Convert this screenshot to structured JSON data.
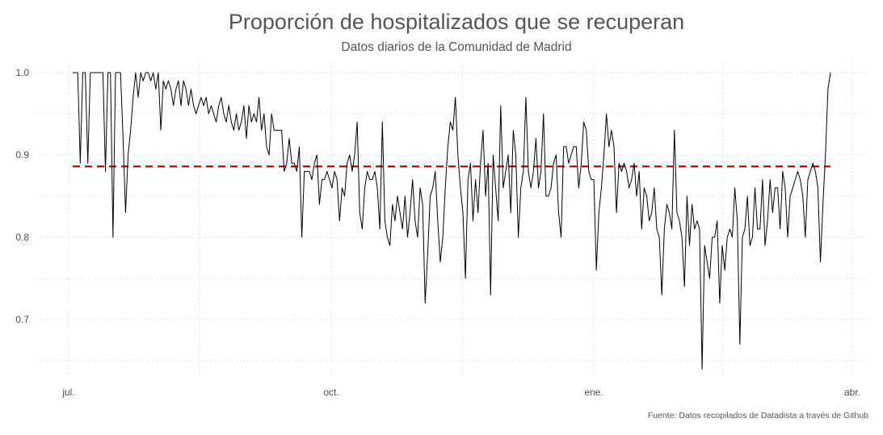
{
  "chart_data": {
    "type": "line",
    "title": "Proporción de hospitalizados que se recuperan",
    "subtitle": "Datos diarios de la Comunidad de Madrid",
    "caption": "Fuente: Datos recopilados de Datadista a través de Github",
    "xlabel": "",
    "ylabel": "",
    "x_tick_labels": [
      "jul.",
      "oct.",
      "ene.",
      "abr."
    ],
    "y_tick_labels": [
      "0.7",
      "0.8",
      "0.9",
      "1.0"
    ],
    "y_ticks": [
      0.7,
      0.8,
      0.9,
      1.0
    ],
    "ylim": [
      0.62,
      1.03
    ],
    "grid": true,
    "line_color": "#000000",
    "reference_line": {
      "value": 0.886,
      "color": "#cc0000",
      "style": "dashed"
    },
    "series": [
      {
        "values": [
          1.0,
          1.0,
          1.0,
          0.89,
          1.0,
          1.0,
          0.89,
          1.0,
          1.0,
          1.0,
          1.0,
          1.0,
          1.0,
          0.88,
          1.0,
          1.0,
          0.8,
          1.0,
          1.0,
          1.0,
          0.92,
          0.83,
          0.9,
          0.93,
          0.97,
          1.0,
          0.97,
          1.0,
          0.99,
          1.0,
          1.0,
          0.99,
          1.0,
          0.98,
          1.0,
          0.93,
          0.99,
          0.98,
          0.99,
          0.98,
          0.96,
          0.98,
          0.99,
          0.96,
          0.99,
          0.98,
          0.96,
          0.98,
          0.96,
          0.95,
          0.96,
          0.97,
          0.96,
          0.97,
          0.95,
          0.96,
          0.95,
          0.94,
          0.96,
          0.97,
          0.95,
          0.94,
          0.96,
          0.94,
          0.93,
          0.95,
          0.93,
          0.94,
          0.96,
          0.92,
          0.96,
          0.94,
          0.95,
          0.94,
          0.97,
          0.93,
          0.95,
          0.91,
          0.9,
          0.95,
          0.93,
          0.93,
          0.93,
          0.93,
          0.88,
          0.89,
          0.92,
          0.89,
          0.89,
          0.88,
          0.91,
          0.8,
          0.88,
          0.88,
          0.88,
          0.87,
          0.89,
          0.9,
          0.84,
          0.87,
          0.87,
          0.88,
          0.87,
          0.86,
          0.88,
          0.87,
          0.82,
          0.86,
          0.85,
          0.89,
          0.9,
          0.88,
          0.9,
          0.94,
          0.83,
          0.81,
          0.86,
          0.88,
          0.87,
          0.87,
          0.88,
          0.86,
          0.81,
          0.94,
          0.82,
          0.8,
          0.79,
          0.84,
          0.82,
          0.85,
          0.83,
          0.81,
          0.85,
          0.8,
          0.83,
          0.87,
          0.82,
          0.8,
          0.86,
          0.84,
          0.72,
          0.78,
          0.85,
          0.86,
          0.88,
          0.82,
          0.77,
          0.8,
          0.86,
          0.91,
          0.94,
          0.93,
          0.97,
          0.9,
          0.86,
          0.83,
          0.75,
          0.87,
          0.89,
          0.82,
          0.87,
          0.83,
          0.89,
          0.93,
          0.85,
          0.89,
          0.73,
          0.9,
          0.86,
          0.82,
          0.96,
          0.86,
          0.88,
          0.9,
          0.83,
          0.93,
          0.9,
          0.8,
          0.86,
          0.88,
          0.97,
          0.88,
          0.86,
          0.88,
          0.92,
          0.86,
          0.88,
          0.95,
          0.85,
          0.85,
          0.86,
          0.89,
          0.9,
          0.83,
          0.8,
          0.91,
          0.91,
          0.89,
          0.9,
          0.91,
          0.91,
          0.86,
          0.89,
          0.94,
          0.93,
          0.88,
          0.87,
          0.87,
          0.76,
          0.83,
          0.86,
          0.9,
          0.95,
          0.91,
          0.93,
          0.91,
          0.83,
          0.89,
          0.88,
          0.89,
          0.88,
          0.86,
          0.87,
          0.89,
          0.85,
          0.88,
          0.81,
          0.86,
          0.85,
          0.82,
          0.83,
          0.86,
          0.81,
          0.8,
          0.73,
          0.81,
          0.84,
          0.83,
          0.81,
          0.93,
          0.83,
          0.82,
          0.8,
          0.74,
          0.85,
          0.79,
          0.84,
          0.81,
          0.82,
          0.81,
          0.64,
          0.79,
          0.77,
          0.75,
          0.8,
          0.8,
          0.82,
          0.72,
          0.79,
          0.76,
          0.8,
          0.81,
          0.8,
          0.86,
          0.82,
          0.67,
          0.8,
          0.81,
          0.85,
          0.79,
          0.8,
          0.86,
          0.81,
          0.81,
          0.87,
          0.79,
          0.82,
          0.87,
          0.83,
          0.86,
          0.86,
          0.81,
          0.88,
          0.86,
          0.8,
          0.85,
          0.86,
          0.87,
          0.88,
          0.87,
          0.85,
          0.8,
          0.87,
          0.88,
          0.89,
          0.88,
          0.86,
          0.77,
          0.84,
          0.9,
          0.98,
          1.0
        ]
      }
    ]
  }
}
